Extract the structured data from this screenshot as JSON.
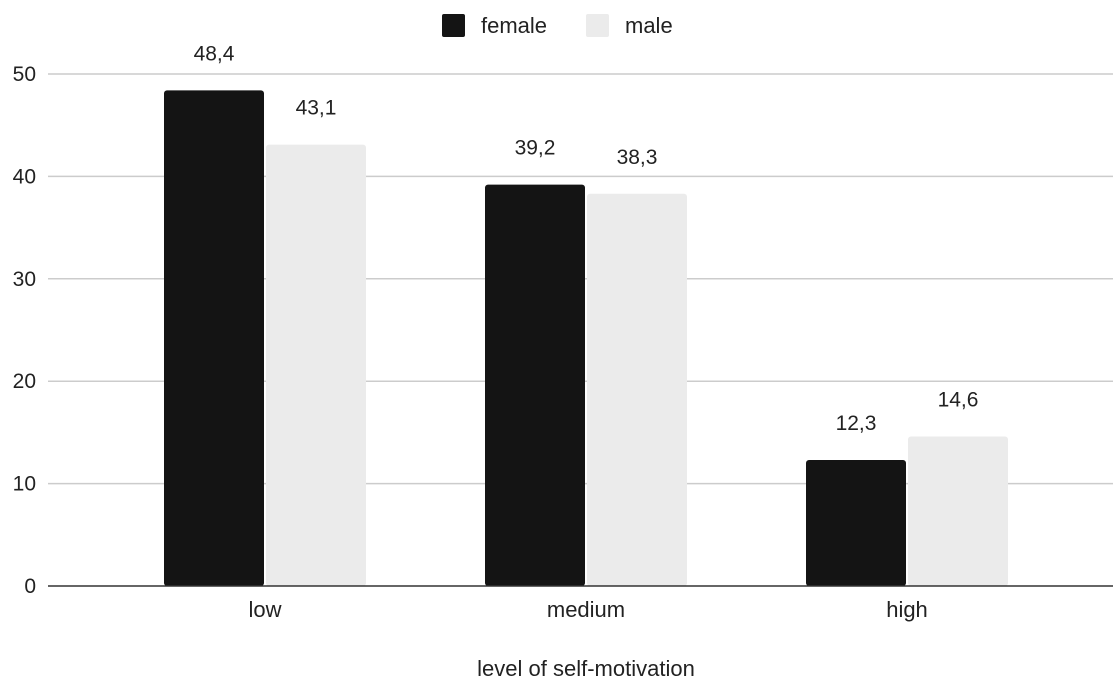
{
  "chart_data": {
    "type": "bar",
    "title": "",
    "xlabel": "level of self-motivation",
    "ylabel": "",
    "categories": [
      "low",
      "medium",
      "high"
    ],
    "series": [
      {
        "name": "female",
        "color": "#141414",
        "values": [
          48.4,
          39.2,
          12.3
        ],
        "labels": [
          "48,4",
          "39,2",
          "12,3"
        ]
      },
      {
        "name": "male",
        "color": "#ebebeb",
        "values": [
          43.1,
          38.3,
          14.6
        ],
        "labels": [
          "43,1",
          "38,3",
          "14,6"
        ]
      }
    ],
    "ylim": [
      0,
      50
    ],
    "yticks": [
      0,
      10,
      20,
      30,
      40,
      50
    ],
    "grid": true,
    "legend": "top-center"
  }
}
